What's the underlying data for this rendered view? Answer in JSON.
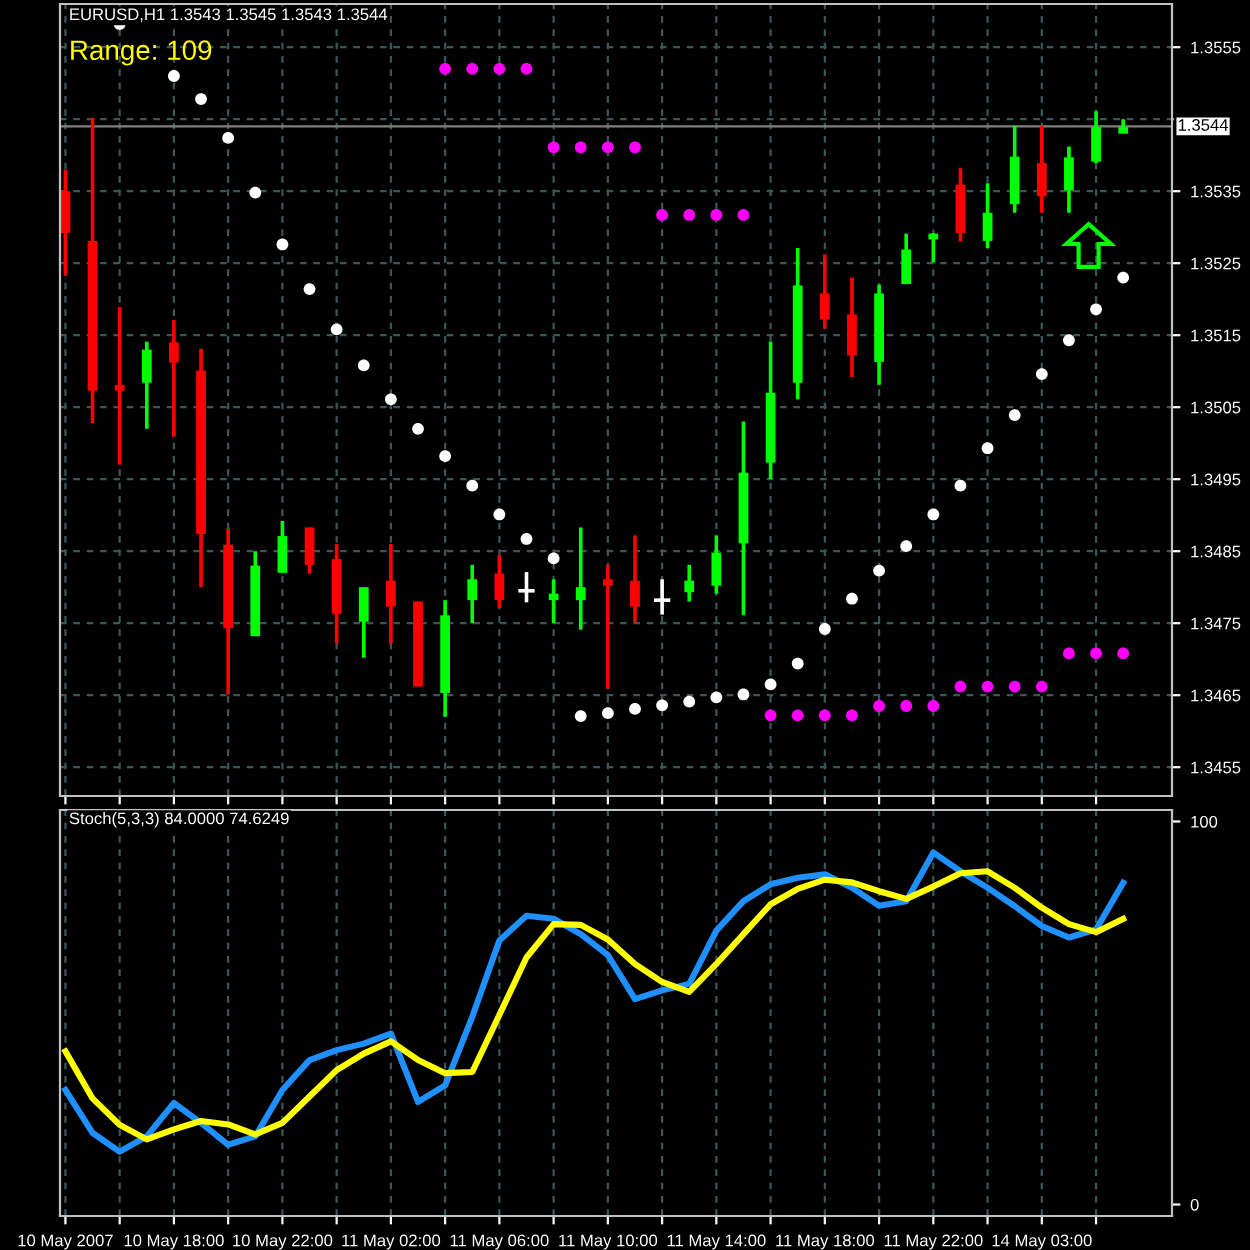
{
  "chart_data": [
    {
      "type": "candlestick",
      "title": "EURUSD,H1 1.3543 1.3545 1.3543 1.3544",
      "categories": [
        null,
        null,
        null,
        null,
        null,
        null,
        null,
        null,
        null,
        null,
        null,
        null,
        null,
        null,
        null,
        null,
        null,
        null,
        null,
        null,
        null,
        null,
        null,
        null,
        null,
        null,
        null,
        null,
        null,
        null,
        null,
        null,
        null,
        null,
        null,
        null,
        null,
        null,
        null,
        null
      ],
      "ohlc": [
        [
          1.3535,
          1.3538,
          1.35233,
          1.35292
        ],
        [
          1.35281,
          1.35452,
          1.35028,
          1.35073
        ],
        [
          1.35081,
          1.35189,
          1.3497,
          1.35073
        ],
        [
          1.35084,
          1.35141,
          1.3502,
          1.3513
        ],
        [
          1.3514,
          1.35171,
          1.35009,
          1.35112
        ],
        [
          1.35101,
          1.35131,
          1.348,
          1.34874
        ],
        [
          1.34859,
          1.34881,
          1.34651,
          1.34743
        ],
        [
          1.34732,
          1.3485,
          1.34732,
          1.3483
        ],
        [
          1.3482,
          1.34892,
          1.3482,
          1.34871
        ],
        [
          1.34883,
          1.34883,
          1.34819,
          1.34831
        ],
        [
          1.34839,
          1.3486,
          1.34722,
          1.34763
        ],
        [
          1.34752,
          1.348,
          1.34702,
          1.348
        ],
        [
          1.34809,
          1.3486,
          1.34722,
          1.34773
        ],
        [
          1.3478,
          1.3478,
          1.34662,
          1.34662
        ],
        [
          1.34653,
          1.34782,
          1.3462,
          1.34761
        ],
        [
          1.34782,
          1.34831,
          1.3475,
          1.34811
        ],
        [
          1.34819,
          1.34844,
          1.34771,
          1.34782
        ],
        [
          1.34795,
          1.34821,
          1.34779,
          1.34795
        ],
        [
          1.34782,
          1.34811,
          1.3475,
          1.34791
        ],
        [
          1.34782,
          1.34883,
          1.34741,
          1.348
        ],
        [
          1.34811,
          1.34831,
          1.34659,
          1.34802
        ],
        [
          1.34809,
          1.34872,
          1.34751,
          1.34773
        ],
        [
          1.34782,
          1.34811,
          1.34762,
          1.34782
        ],
        [
          1.34793,
          1.34831,
          1.3478,
          1.34809
        ],
        [
          1.34802,
          1.34872,
          1.34791,
          1.34848
        ],
        [
          1.34861,
          1.3503,
          1.34761,
          1.34959
        ],
        [
          1.34973,
          1.35141,
          1.3495,
          1.3507
        ],
        [
          1.35084,
          1.35271,
          1.35061,
          1.35219
        ],
        [
          1.35208,
          1.35262,
          1.35159,
          1.35172
        ],
        [
          1.35179,
          1.3523,
          1.35092,
          1.35122
        ],
        [
          1.35113,
          1.3522,
          1.35081,
          1.35208
        ],
        [
          1.35221,
          1.35291,
          1.35221,
          1.35269
        ],
        [
          1.35283,
          1.35292,
          1.35251,
          1.35291
        ],
        [
          1.35359,
          1.35382,
          1.3528,
          1.35292
        ],
        [
          1.35281,
          1.35361,
          1.35271,
          1.3532
        ],
        [
          1.35332,
          1.35441,
          1.3532,
          1.35398
        ],
        [
          1.35389,
          1.35441,
          1.3532,
          1.35343
        ],
        [
          1.35351,
          1.35412,
          1.3532,
          1.35397
        ],
        [
          1.35391,
          1.35461,
          1.35389,
          1.35441
        ],
        [
          1.3543,
          1.3545,
          1.3543,
          1.3544
        ]
      ],
      "colors": [
        "#ff0000",
        "#ff0000",
        "#ff0000",
        "#00ff00",
        "#ff0000",
        "#ff0000",
        "#ff0000",
        "#00ff00",
        "#00ff00",
        "#ff0000",
        "#ff0000",
        "#00ff00",
        "#ff0000",
        "#ff0000",
        "#00ff00",
        "#00ff00",
        "#ff0000",
        "#ffffff",
        "#00ff00",
        "#00ff00",
        "#ff0000",
        "#ff0000",
        "#ffffff",
        "#00ff00",
        "#00ff00",
        "#00ff00",
        "#00ff00",
        "#00ff00",
        "#ff0000",
        "#ff0000",
        "#00ff00",
        "#00ff00",
        "#00ff00",
        "#ff0000",
        "#00ff00",
        "#00ff00",
        "#ff0000",
        "#00ff00",
        "#00ff00",
        "#00ff00"
      ],
      "series": [
        {
          "type": "scatter",
          "color": "#ffffff",
          "values": [
            null,
            null,
            1.35582,
            null,
            1.3551,
            1.35478,
            1.35424,
            1.35348,
            1.35276,
            1.35214,
            1.35158,
            1.35108,
            1.35061,
            1.3502,
            1.34982,
            1.34941,
            1.34901,
            1.34867,
            1.3484,
            1.34621,
            1.34625,
            1.34631,
            1.34636,
            1.34641,
            1.34647,
            1.34651,
            1.34665,
            1.34694,
            1.34742,
            1.34784,
            1.34823,
            1.34857,
            1.34901,
            1.34941,
            1.34993,
            1.35039,
            1.35096,
            1.35143,
            1.35186,
            1.3523
          ]
        },
        {
          "type": "scatter",
          "color": "#ff00ff",
          "values": [
            null,
            null,
            null,
            null,
            null,
            null,
            null,
            null,
            null,
            null,
            null,
            null,
            null,
            null,
            1.3552,
            1.3552,
            1.3552,
            1.3552,
            1.35411,
            1.35411,
            1.35411,
            1.35411,
            1.35317,
            1.35317,
            1.35317,
            1.35317,
            1.34622,
            1.34622,
            1.34622,
            1.34622,
            1.34635,
            1.34635,
            1.34635,
            1.34662,
            1.34662,
            1.34662,
            1.34662,
            1.34708,
            1.34708,
            1.34708
          ]
        }
      ],
      "marker": "circle",
      "annotations": [
        "Range: 109"
      ],
      "ylim": [
        1.3451,
        1.3561
      ],
      "yticks": [
        1.3455,
        1.3465,
        1.3475,
        1.3485,
        1.3495,
        1.3505,
        1.3515,
        1.3525,
        1.3535,
        {
          "value": 1.3545,
          "label": null
        },
        1.3555
      ],
      "ref_lines": [
        {
          "axis": "y",
          "value": 1.3544,
          "label": "1.3544",
          "color": "#808080"
        }
      ],
      "grid": true,
      "tick_labels": "y"
    },
    {
      "type": "line",
      "title": "Stoch(5,3,3) 84.0000 74.6249",
      "categories": [
        "10 May 2007",
        null,
        null,
        null,
        "10 May 18:00",
        null,
        null,
        null,
        "10 May 22:00",
        null,
        null,
        null,
        "11 May 02:00",
        null,
        null,
        null,
        "11 May 06:00",
        null,
        null,
        null,
        "11 May 10:00",
        null,
        null,
        null,
        "11 May 14:00",
        null,
        null,
        null,
        "11 May 18:00",
        null,
        null,
        null,
        "11 May 22:00",
        null,
        null,
        null,
        "14 May 03:00",
        null,
        null,
        null
      ],
      "series": [
        {
          "color": "#1e90ff",
          "values": [
            29.9,
            18.7,
            13.8,
            17.8,
            26.5,
            21.3,
            15.6,
            17.8,
            29.9,
            37.7,
            40.3,
            42.0,
            44.6,
            26.8,
            31.1,
            49.0,
            68.9,
            75.4,
            74.6,
            70.6,
            65.1,
            53.6,
            55.9,
            57.6,
            71.5,
            79.2,
            83.6,
            85.3,
            86.2,
            82.7,
            78.0,
            79.2,
            91.9,
            87.0,
            82.7,
            77.9,
            72.7,
            69.7,
            71.8,
            84.0
          ]
        },
        {
          "color": "#ffff00",
          "values": [
            40.0,
            27.7,
            20.8,
            17.0,
            19.6,
            21.8,
            20.9,
            18.3,
            21.3,
            28.2,
            35.1,
            39.4,
            42.6,
            37.7,
            34.3,
            34.6,
            49.5,
            64.5,
            73.2,
            73.0,
            69.2,
            62.8,
            58.1,
            55.5,
            62.8,
            70.6,
            78.4,
            82.4,
            84.8,
            84.1,
            81.8,
            79.8,
            83.0,
            86.5,
            87.0,
            82.7,
            77.5,
            73.2,
            71.1,
            74.6
          ]
        }
      ],
      "ylim": [
        -3,
        103
      ],
      "yticks": [
        0,
        100
      ],
      "grid": "x"
    }
  ]
}
